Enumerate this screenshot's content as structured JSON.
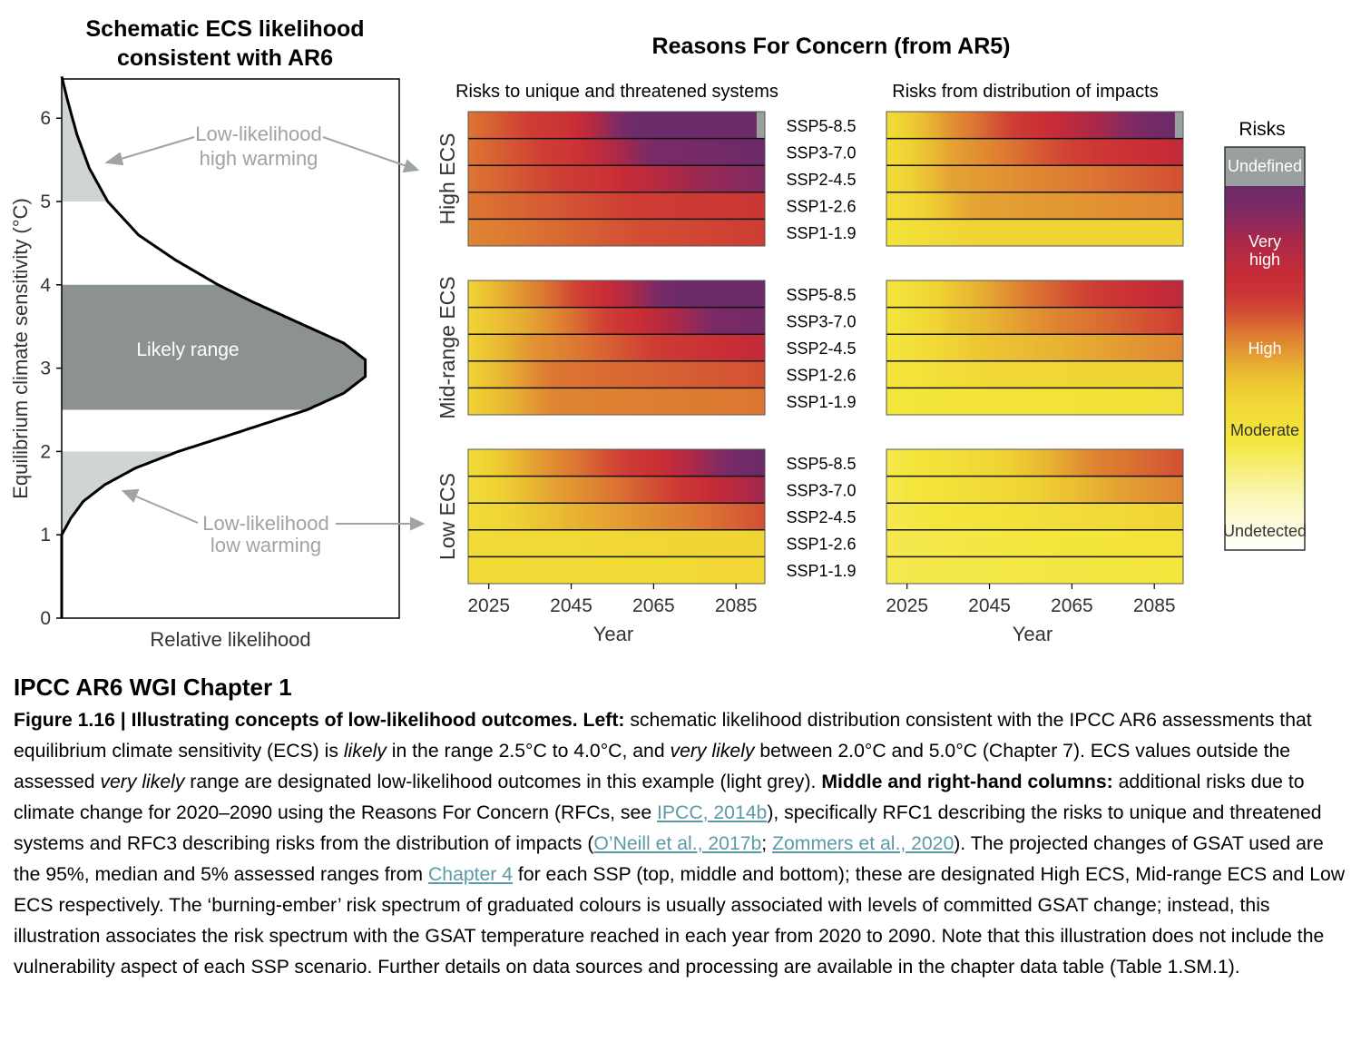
{
  "source_title": "IPCC AR6 WGI Chapter 1",
  "caption": {
    "p01": "Figure 1.16 | Illustrating concepts of low-likelihood outcomes.",
    "p02": " ",
    "p03": "Left:",
    "p04": " schematic likelihood distribution consistent with the IPCC AR6 assessments that equilibrium climate sensitivity (ECS) is ",
    "p05": "likely",
    "p06": " in the range 2.5°C to 4.0°C, and ",
    "p07": "very likely",
    "p08": " between 2.0°C and 5.0°C (Chapter 7). ECS values outside the assessed ",
    "p09": "very likely",
    "p10": " range are designated low-likelihood outcomes in this example (light grey). ",
    "p11": "Middle and right-hand columns:",
    "p12": " additional risks due to climate change for 2020–2090 using the Reasons For Concern (RFCs, see ",
    "p13": "IPCC, 2014b",
    "p14": "), specifically RFC1 describing the risks to unique and threatened systems and RFC3 describing risks from the distribution of impacts (",
    "p15": "O’Neill et al., 2017b",
    "p16": "; ",
    "p17": "Zommers et al., 2020",
    "p18": "). The projected changes of GSAT used are the 95%, median and 5% assessed ranges from ",
    "p19": "Chapter 4",
    "p20": " for each SSP (top, middle and bottom); these are designated High ECS, Mid-range ECS and Low ECS respectively. The ‘burning-ember’ risk spectrum of graduated colours is usually associated with levels of committed GSAT change; instead, this illustration associates the risk spectrum with the GSAT temperature reached in each year from 2020 to 2090. Note that this illustration does not include the vulnerability aspect of each SSP scenario. Further details on data sources and processing are available in the chapter data table (Table 1.SM.1)."
  },
  "colors": {
    "undetected": "#ffffff",
    "moderate": "#f2e233",
    "high": "#cc2f35",
    "very_high": "#6e2a6a",
    "undefined": "#9aa0a0",
    "likely_fill": "#8c9292",
    "low_likelihood_fill": "#cfd4d4",
    "annotation_grey": "#9ea3a3"
  },
  "chart_data": [
    {
      "type": "area",
      "title": "Schematic ECS likelihood consistent with AR6",
      "xlabel": "Relative likelihood",
      "ylabel": "Equilibrium climate sensitivity (°C)",
      "ylim": [
        0,
        6.5
      ],
      "yticks": [
        "0",
        "1",
        "2",
        "3",
        "4",
        "5",
        "6"
      ],
      "curve": {
        "y": [
          1.0,
          1.2,
          1.4,
          1.6,
          1.8,
          2.0,
          2.2,
          2.5,
          2.7,
          2.9,
          3.1,
          3.3,
          3.5,
          3.8,
          4.0,
          4.3,
          4.6,
          5.0,
          5.4,
          5.8,
          6.2,
          6.5
        ],
        "likelihood": [
          0.0,
          0.03,
          0.07,
          0.14,
          0.24,
          0.38,
          0.55,
          0.8,
          0.92,
          0.99,
          0.99,
          0.92,
          0.8,
          0.62,
          0.51,
          0.37,
          0.25,
          0.15,
          0.09,
          0.05,
          0.02,
          0.0
        ]
      },
      "bands": [
        {
          "name": "Likely range",
          "from": 2.5,
          "to": 4.0,
          "labeled": true
        },
        {
          "name": "Low-likelihood low warming",
          "from": 1.0,
          "to": 2.0,
          "labeled": false
        },
        {
          "name": "Low-likelihood high warming",
          "from": 5.0,
          "to": 6.5,
          "labeled": false
        }
      ],
      "annotations": [
        {
          "name": "Low-likelihood high warming",
          "lines": [
            "Low-likelihood",
            "high warming"
          ]
        },
        {
          "name": "Low-likelihood low warming",
          "lines": [
            "Low-likelihood",
            "low warming"
          ]
        }
      ]
    },
    {
      "type": "heatmap",
      "title": "Reasons For Concern (from AR5)",
      "xlabel": "Year",
      "xlim": [
        2020,
        2092
      ],
      "xticks": [
        2025,
        2045,
        2065,
        2085
      ],
      "scenarios": [
        "SSP5-8.5",
        "SSP3-7.0",
        "SSP2-4.5",
        "SSP1-2.6",
        "SSP1-1.9"
      ],
      "row_groups": [
        "High ECS",
        "Mid-range ECS",
        "Low ECS"
      ],
      "columns": [
        {
          "name": "Risks to unique and threatened systems",
          "panels": [
            {
              "group": "High ECS",
              "rows": [
                {
                  "scenario": "SSP5-8.5",
                  "stops": [
                    [
                      2020,
                      2.2
                    ],
                    [
                      2045,
                      2.45
                    ],
                    [
                      2060,
                      3.0
                    ],
                    [
                      2090,
                      3.0
                    ]
                  ],
                  "undefined_from": 2090
                },
                {
                  "scenario": "SSP3-7.0",
                  "stops": [
                    [
                      2020,
                      2.2
                    ],
                    [
                      2045,
                      2.4
                    ],
                    [
                      2065,
                      2.9
                    ],
                    [
                      2092,
                      3.0
                    ]
                  ]
                },
                {
                  "scenario": "SSP2-4.5",
                  "stops": [
                    [
                      2020,
                      2.2
                    ],
                    [
                      2050,
                      2.4
                    ],
                    [
                      2075,
                      2.75
                    ],
                    [
                      2092,
                      2.85
                    ]
                  ]
                },
                {
                  "scenario": "SSP1-2.6",
                  "stops": [
                    [
                      2020,
                      2.2
                    ],
                    [
                      2060,
                      2.35
                    ],
                    [
                      2092,
                      2.4
                    ]
                  ]
                },
                {
                  "scenario": "SSP1-1.9",
                  "stops": [
                    [
                      2020,
                      2.15
                    ],
                    [
                      2060,
                      2.3
                    ],
                    [
                      2092,
                      2.35
                    ]
                  ]
                }
              ]
            },
            {
              "group": "Mid-range ECS",
              "rows": [
                {
                  "scenario": "SSP5-8.5",
                  "stops": [
                    [
                      2020,
                      1.85
                    ],
                    [
                      2030,
                      2.05
                    ],
                    [
                      2050,
                      2.4
                    ],
                    [
                      2070,
                      3.0
                    ],
                    [
                      2092,
                      3.0
                    ]
                  ]
                },
                {
                  "scenario": "SSP3-7.0",
                  "stops": [
                    [
                      2020,
                      1.85
                    ],
                    [
                      2035,
                      2.05
                    ],
                    [
                      2060,
                      2.45
                    ],
                    [
                      2080,
                      2.9
                    ],
                    [
                      2092,
                      2.95
                    ]
                  ]
                },
                {
                  "scenario": "SSP2-4.5",
                  "stops": [
                    [
                      2020,
                      1.85
                    ],
                    [
                      2035,
                      2.1
                    ],
                    [
                      2065,
                      2.35
                    ],
                    [
                      2092,
                      2.55
                    ]
                  ]
                },
                {
                  "scenario": "SSP1-2.6",
                  "stops": [
                    [
                      2020,
                      1.85
                    ],
                    [
                      2040,
                      2.2
                    ],
                    [
                      2092,
                      2.3
                    ]
                  ]
                },
                {
                  "scenario": "SSP1-1.9",
                  "stops": [
                    [
                      2020,
                      1.85
                    ],
                    [
                      2040,
                      2.15
                    ],
                    [
                      2092,
                      2.2
                    ]
                  ]
                }
              ]
            },
            {
              "group": "Low ECS",
              "rows": [
                {
                  "scenario": "SSP5-8.5",
                  "stops": [
                    [
                      2020,
                      1.75
                    ],
                    [
                      2035,
                      2.05
                    ],
                    [
                      2065,
                      2.45
                    ],
                    [
                      2085,
                      2.95
                    ],
                    [
                      2092,
                      3.0
                    ]
                  ]
                },
                {
                  "scenario": "SSP3-7.0",
                  "stops": [
                    [
                      2020,
                      1.75
                    ],
                    [
                      2040,
                      2.05
                    ],
                    [
                      2070,
                      2.35
                    ],
                    [
                      2092,
                      2.75
                    ]
                  ]
                },
                {
                  "scenario": "SSP2-4.5",
                  "stops": [
                    [
                      2020,
                      1.75
                    ],
                    [
                      2045,
                      2.0
                    ],
                    [
                      2092,
                      2.3
                    ]
                  ]
                },
                {
                  "scenario": "SSP1-2.6",
                  "stops": [
                    [
                      2020,
                      1.75
                    ],
                    [
                      2092,
                      1.85
                    ]
                  ]
                },
                {
                  "scenario": "SSP1-1.9",
                  "stops": [
                    [
                      2020,
                      1.75
                    ],
                    [
                      2092,
                      1.8
                    ]
                  ]
                }
              ]
            }
          ]
        },
        {
          "name": "Risks from distribution of impacts",
          "panels": [
            {
              "group": "High ECS",
              "rows": [
                {
                  "scenario": "SSP5-8.5",
                  "stops": [
                    [
                      2020,
                      1.75
                    ],
                    [
                      2035,
                      2.1
                    ],
                    [
                      2060,
                      2.5
                    ],
                    [
                      2085,
                      2.95
                    ],
                    [
                      2090,
                      3.0
                    ]
                  ],
                  "undefined_from": 2090
                },
                {
                  "scenario": "SSP3-7.0",
                  "stops": [
                    [
                      2020,
                      1.75
                    ],
                    [
                      2035,
                      2.05
                    ],
                    [
                      2060,
                      2.3
                    ],
                    [
                      2092,
                      2.55
                    ]
                  ]
                },
                {
                  "scenario": "SSP2-4.5",
                  "stops": [
                    [
                      2020,
                      1.75
                    ],
                    [
                      2035,
                      2.05
                    ],
                    [
                      2092,
                      2.3
                    ]
                  ]
                },
                {
                  "scenario": "SSP1-2.6",
                  "stops": [
                    [
                      2020,
                      1.7
                    ],
                    [
                      2040,
                      2.05
                    ],
                    [
                      2092,
                      2.15
                    ]
                  ]
                },
                {
                  "scenario": "SSP1-1.9",
                  "stops": [
                    [
                      2020,
                      1.65
                    ],
                    [
                      2040,
                      1.85
                    ],
                    [
                      2092,
                      1.85
                    ]
                  ]
                }
              ]
            },
            {
              "group": "Mid-range ECS",
              "rows": [
                {
                  "scenario": "SSP5-8.5",
                  "stops": [
                    [
                      2020,
                      1.6
                    ],
                    [
                      2035,
                      1.9
                    ],
                    [
                      2055,
                      2.2
                    ],
                    [
                      2080,
                      2.45
                    ],
                    [
                      2092,
                      2.6
                    ]
                  ]
                },
                {
                  "scenario": "SSP3-7.0",
                  "stops": [
                    [
                      2020,
                      1.6
                    ],
                    [
                      2035,
                      1.9
                    ],
                    [
                      2060,
                      2.15
                    ],
                    [
                      2092,
                      2.35
                    ]
                  ]
                },
                {
                  "scenario": "SSP2-4.5",
                  "stops": [
                    [
                      2020,
                      1.6
                    ],
                    [
                      2040,
                      1.9
                    ],
                    [
                      2092,
                      2.15
                    ]
                  ]
                },
                {
                  "scenario": "SSP1-2.6",
                  "stops": [
                    [
                      2020,
                      1.6
                    ],
                    [
                      2045,
                      1.8
                    ],
                    [
                      2092,
                      1.85
                    ]
                  ]
                },
                {
                  "scenario": "SSP1-1.9",
                  "stops": [
                    [
                      2020,
                      1.6
                    ],
                    [
                      2092,
                      1.7
                    ]
                  ]
                }
              ]
            },
            {
              "group": "Low ECS",
              "rows": [
                {
                  "scenario": "SSP5-8.5",
                  "stops": [
                    [
                      2020,
                      1.55
                    ],
                    [
                      2045,
                      1.8
                    ],
                    [
                      2070,
                      2.15
                    ],
                    [
                      2092,
                      2.3
                    ]
                  ]
                },
                {
                  "scenario": "SSP3-7.0",
                  "stops": [
                    [
                      2020,
                      1.55
                    ],
                    [
                      2050,
                      1.8
                    ],
                    [
                      2075,
                      2.05
                    ],
                    [
                      2092,
                      2.15
                    ]
                  ]
                },
                {
                  "scenario": "SSP2-4.5",
                  "stops": [
                    [
                      2020,
                      1.55
                    ],
                    [
                      2092,
                      1.85
                    ]
                  ]
                },
                {
                  "scenario": "SSP1-2.6",
                  "stops": [
                    [
                      2020,
                      1.55
                    ],
                    [
                      2092,
                      1.65
                    ]
                  ]
                },
                {
                  "scenario": "SSP1-1.9",
                  "stops": [
                    [
                      2020,
                      1.55
                    ],
                    [
                      2092,
                      1.6
                    ]
                  ]
                }
              ]
            }
          ]
        }
      ],
      "risk_scale_note": "risk index: 1 = Undetected, 2 = Moderate, 2.5 = High, 3 = Very high",
      "legend": {
        "title": "Risks",
        "categories": [
          "Undefined",
          "Very high",
          "High",
          "Moderate",
          "Undetected"
        ]
      }
    }
  ]
}
